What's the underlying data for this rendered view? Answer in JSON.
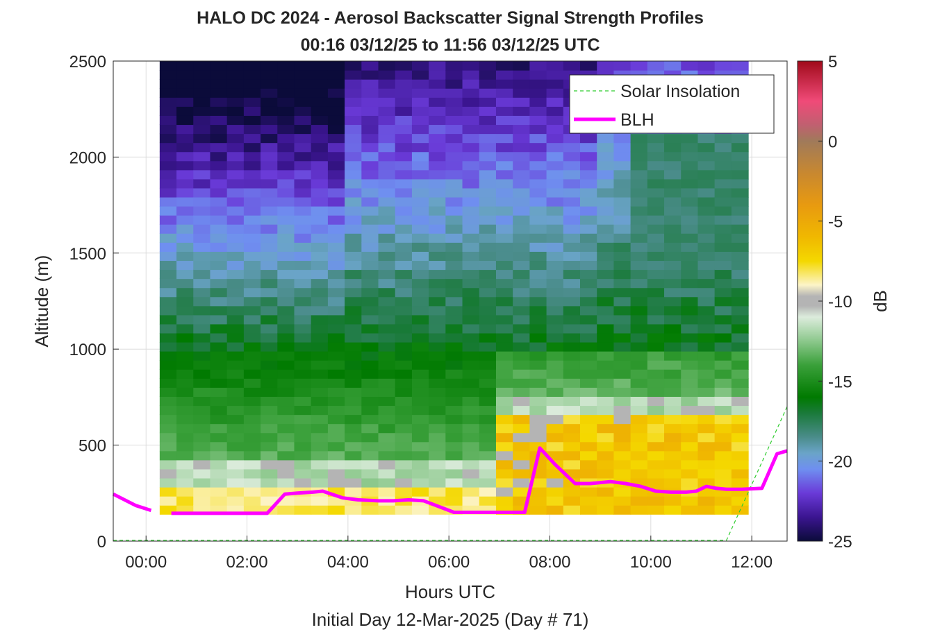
{
  "chart_data": {
    "type": "heatmap",
    "title": "HALO DC 2024 - Aerosol Backscatter Signal Strength Profiles",
    "subtitle": "00:16 03/12/25 to 11:56 03/12/25  UTC",
    "xlabel": "Hours UTC",
    "xlabel2": "Initial Day 12-Mar-2025 (Day # 71)",
    "ylabel": "Altitude (m)",
    "colorbar_label": "dB",
    "x_range_hours": [
      -0.65,
      12.7
    ],
    "y_range": [
      0,
      2500
    ],
    "x_ticks": [
      {
        "value": 0,
        "label": "00:00"
      },
      {
        "value": 2,
        "label": "02:00"
      },
      {
        "value": 4,
        "label": "04:00"
      },
      {
        "value": 6,
        "label": "06:00"
      },
      {
        "value": 8,
        "label": "08:00"
      },
      {
        "value": 10,
        "label": "10:00"
      },
      {
        "value": 12,
        "label": "12:00"
      }
    ],
    "y_ticks": [
      {
        "value": 0,
        "label": "0"
      },
      {
        "value": 500,
        "label": "500"
      },
      {
        "value": 1000,
        "label": "1000"
      },
      {
        "value": 1500,
        "label": "1500"
      },
      {
        "value": 2000,
        "label": "2000"
      },
      {
        "value": 2500,
        "label": "2500"
      }
    ],
    "colorbar_ticks": [
      {
        "value": 5,
        "label": "5"
      },
      {
        "value": 0,
        "label": "0"
      },
      {
        "value": -5,
        "label": "-5"
      },
      {
        "value": -10,
        "label": "-10"
      },
      {
        "value": -15,
        "label": "-15"
      },
      {
        "value": -20,
        "label": "-20"
      },
      {
        "value": -25,
        "label": "-25"
      }
    ],
    "colorbar_range": [
      -25,
      5
    ],
    "colormap": [
      {
        "db": -25,
        "color": "#0b0b3a"
      },
      {
        "db": -23.5,
        "color": "#3b1590"
      },
      {
        "db": -22,
        "color": "#6a3ad8"
      },
      {
        "db": -20.5,
        "color": "#6f8ff0"
      },
      {
        "db": -19.5,
        "color": "#6aa4c8"
      },
      {
        "db": -18.5,
        "color": "#4a8c8a"
      },
      {
        "db": -17,
        "color": "#1a7a3a"
      },
      {
        "db": -16,
        "color": "#007a00"
      },
      {
        "db": -14,
        "color": "#3aa03a"
      },
      {
        "db": -12.5,
        "color": "#8cc88c"
      },
      {
        "db": -11,
        "color": "#dcecdc"
      },
      {
        "db": -10.3,
        "color": "#b4b4b4"
      },
      {
        "db": -9.7,
        "color": "#b4b4b4"
      },
      {
        "db": -9,
        "color": "#fcf4c8"
      },
      {
        "db": -7.5,
        "color": "#f4d800"
      },
      {
        "db": -6,
        "color": "#f0b800"
      },
      {
        "db": -4,
        "color": "#e89a10"
      },
      {
        "db": -2,
        "color": "#c88830"
      },
      {
        "db": 0,
        "color": "#a07a5a"
      },
      {
        "db": 1,
        "color": "#c06070"
      },
      {
        "db": 2.5,
        "color": "#f04a78"
      },
      {
        "db": 5,
        "color": "#a00a1a"
      }
    ],
    "heatmap_time_range_hours": [
      0.27,
      11.93
    ],
    "heatmap_alt_range": [
      140,
      2500
    ],
    "series": [
      {
        "name": "Solar Insolation",
        "style": "dashed",
        "color": "#2ecc2e",
        "x": [
          -0.65,
          11.5,
          12.7
        ],
        "y": [
          5,
          5,
          700
        ]
      },
      {
        "name": "BLH",
        "style": "solid",
        "color": "#ff00ff",
        "segments": [
          {
            "x": [
              -0.65,
              -0.2,
              0.1
            ],
            "y": [
              245,
              185,
              160
            ]
          },
          {
            "x": [
              0.5,
              0.9,
              1.2,
              1.6,
              2.0,
              2.4,
              2.75,
              3.0,
              3.3,
              3.5,
              3.9,
              4.2,
              4.6,
              4.9,
              5.2,
              5.5,
              5.8,
              6.1,
              6.3,
              6.6,
              6.9,
              7.2,
              7.5,
              7.8,
              8.1,
              8.5,
              8.8,
              9.2,
              9.5,
              9.8,
              10.1,
              10.4,
              10.7,
              10.9,
              11.1,
              11.3,
              11.5,
              11.8,
              12.2,
              12.5,
              12.7
            ]
          },
          {
            "x": [],
            "y": []
          }
        ]
      }
    ],
    "blh_points": {
      "x": [
        0.5,
        0.9,
        1.2,
        1.6,
        2.0,
        2.4,
        2.75,
        3.0,
        3.3,
        3.5,
        3.9,
        4.2,
        4.6,
        4.9,
        5.2,
        5.5,
        5.8,
        6.1,
        6.3,
        6.6,
        6.9,
        7.2,
        7.5,
        7.8,
        8.1,
        8.5,
        8.8,
        9.2,
        9.5,
        9.8,
        10.1,
        10.4,
        10.7,
        10.9,
        11.1,
        11.3,
        11.5,
        11.8,
        12.2,
        12.5,
        12.7
      ],
      "y": [
        145,
        145,
        145,
        145,
        145,
        145,
        245,
        250,
        255,
        260,
        225,
        215,
        210,
        210,
        215,
        210,
        180,
        150,
        150,
        150,
        150,
        150,
        150,
        485,
        400,
        300,
        300,
        310,
        300,
        285,
        260,
        255,
        255,
        260,
        285,
        275,
        270,
        270,
        275,
        455,
        470
      ]
    },
    "legend": {
      "position": "top-right",
      "entries": [
        "Solar Insolation",
        "BLH"
      ]
    },
    "grid": true
  }
}
